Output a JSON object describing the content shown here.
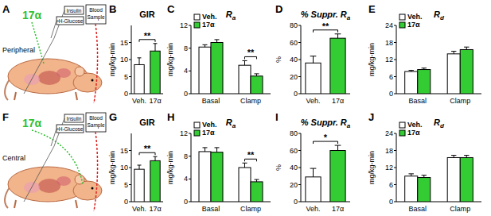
{
  "chart_data": [
    {
      "type": "bar",
      "panel": "B",
      "title": "GIR",
      "y_label": "mg/kg-min",
      "categories": [
        "Veh.",
        "17α"
      ],
      "values": [
        8.5,
        12.5
      ],
      "errors": [
        2.0,
        2.2
      ],
      "colors": [
        "#ffffff",
        "#33cc33"
      ],
      "ylim": [
        0,
        20
      ],
      "yticks": [
        0,
        5,
        10,
        15
      ],
      "significance": [
        {
          "label": "**"
        }
      ]
    },
    {
      "type": "grouped_bar",
      "panel": "C",
      "title": "R",
      "title_subscript": "a",
      "y_label": "mg/kg-min",
      "categories": [
        "Basal",
        "Clamp"
      ],
      "series": [
        {
          "name": "Veh.",
          "color": "#ffffff",
          "values": [
            8.2,
            5.0
          ],
          "errors": [
            0.4,
            0.8
          ]
        },
        {
          "name": "17α",
          "color": "#33cc33",
          "values": [
            9.0,
            3.1
          ],
          "errors": [
            0.5,
            0.4
          ]
        }
      ],
      "ylim": [
        0,
        12
      ],
      "yticks": [
        0,
        4,
        8,
        12
      ],
      "legend": "top-left",
      "significance": [
        {
          "label": "**",
          "category": 1
        }
      ]
    },
    {
      "type": "bar",
      "panel": "D",
      "title": "% Suppr. R",
      "title_subscript": "a",
      "y_label": "%",
      "categories": [
        "Veh.",
        "17α"
      ],
      "values": [
        36,
        65
      ],
      "errors": [
        8,
        5
      ],
      "colors": [
        "#ffffff",
        "#33cc33"
      ],
      "ylim": [
        0,
        80
      ],
      "yticks": [
        0,
        20,
        40,
        60,
        80
      ],
      "significance": [
        {
          "label": "**"
        }
      ]
    },
    {
      "type": "grouped_bar",
      "panel": "E",
      "title": "R",
      "title_subscript": "d",
      "y_label": "mg/kg-min",
      "categories": [
        "Basal",
        "Clamp"
      ],
      "series": [
        {
          "name": "Veh.",
          "color": "#ffffff",
          "values": [
            7.8,
            14.0
          ],
          "errors": [
            0.4,
            0.9
          ]
        },
        {
          "name": "17α",
          "color": "#33cc33",
          "values": [
            8.5,
            15.5
          ],
          "errors": [
            0.5,
            0.9
          ]
        }
      ],
      "ylim": [
        0,
        24
      ],
      "yticks": [
        0,
        6,
        12,
        18,
        24
      ],
      "legend": "top-left",
      "significance": []
    },
    {
      "type": "bar",
      "panel": "G",
      "title": "GIR",
      "y_label": "mg/kg-min",
      "categories": [
        "Veh.",
        "17α"
      ],
      "values": [
        9.5,
        12.0
      ],
      "errors": [
        1.2,
        1.2
      ],
      "colors": [
        "#ffffff",
        "#33cc33"
      ],
      "ylim": [
        0,
        20
      ],
      "yticks": [
        0,
        5,
        10,
        15
      ],
      "significance": [
        {
          "label": "**"
        }
      ]
    },
    {
      "type": "grouped_bar",
      "panel": "H",
      "title": "R",
      "title_subscript": "a",
      "y_label": "mg/kg-min",
      "categories": [
        "Basal",
        "Clamp"
      ],
      "series": [
        {
          "name": "Veh.",
          "color": "#ffffff",
          "values": [
            8.8,
            6.0
          ],
          "errors": [
            0.7,
            0.8
          ]
        },
        {
          "name": "17α",
          "color": "#33cc33",
          "values": [
            8.7,
            3.5
          ],
          "errors": [
            0.8,
            0.4
          ]
        }
      ],
      "ylim": [
        0,
        12
      ],
      "yticks": [
        0,
        4,
        8,
        12
      ],
      "legend": "top-left",
      "significance": [
        {
          "label": "**",
          "category": 1
        }
      ]
    },
    {
      "type": "bar",
      "panel": "I",
      "title": "% Suppr. R",
      "title_subscript": "a",
      "y_label": "%",
      "categories": [
        "Veh.",
        "17α"
      ],
      "values": [
        29,
        60
      ],
      "errors": [
        10,
        6
      ],
      "colors": [
        "#ffffff",
        "#33cc33"
      ],
      "ylim": [
        0,
        80
      ],
      "yticks": [
        0,
        20,
        40,
        60,
        80
      ],
      "significance": [
        {
          "label": "*"
        }
      ]
    },
    {
      "type": "grouped_bar",
      "panel": "J",
      "title": "R",
      "title_subscript": "d",
      "y_label": "mg/kg-min",
      "categories": [
        "Basal",
        "Clamp"
      ],
      "series": [
        {
          "name": "Veh.",
          "color": "#ffffff",
          "values": [
            9.0,
            15.5
          ],
          "errors": [
            0.8,
            0.8
          ]
        },
        {
          "name": "17α",
          "color": "#33cc33",
          "values": [
            8.5,
            15.5
          ],
          "errors": [
            0.8,
            0.8
          ]
        }
      ],
      "ylim": [
        0,
        24
      ],
      "yticks": [
        0,
        6,
        12,
        18,
        24
      ],
      "legend": "top-left",
      "significance": []
    }
  ],
  "diagrams": [
    {
      "panel": "A",
      "drug": "17α",
      "route": "Peripheral",
      "inputs": [
        "Insulin",
        "³H-Glucose"
      ],
      "output": "Blood Sample"
    },
    {
      "panel": "F",
      "drug": "17α",
      "route": "Central",
      "inputs": [
        "Insulin",
        "³H-Glucose"
      ],
      "output": "Blood Sample"
    }
  ]
}
